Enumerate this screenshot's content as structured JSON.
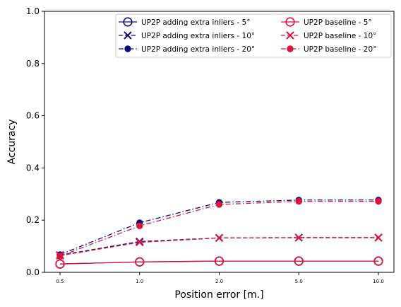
{
  "chart_data": {
    "type": "line",
    "title": "",
    "xlabel": "Position error [m.]",
    "ylabel": "Accuracy",
    "x": [
      0.5,
      1.0,
      2.0,
      5.0,
      10.0
    ],
    "x_tick_labels": [
      "0.5",
      "1.0",
      "2.0",
      "5.0",
      "10.0"
    ],
    "xscale": "categorical-equal-spacing",
    "ylim": [
      0,
      1
    ],
    "y_ticks": [
      "0.0",
      "0.2",
      "0.4",
      "0.6",
      "0.8",
      "1.0"
    ],
    "grid": false,
    "legend_position": "top-right",
    "legend_columns": 2,
    "series": [
      {
        "name": "UP2P adding extra inliers - 5°",
        "values": [
          0.032,
          0.04,
          0.043,
          0.043,
          0.043
        ],
        "color": "#0d0d80",
        "linestyle": "solid",
        "marker": "open-circle"
      },
      {
        "name": "UP2P adding extra inliers - 10°",
        "values": [
          0.066,
          0.118,
          0.132,
          0.133,
          0.133
        ],
        "color": "#0d0d80",
        "linestyle": "dashed",
        "marker": "x"
      },
      {
        "name": "UP2P adding extra inliers - 20°",
        "values": [
          0.068,
          0.19,
          0.268,
          0.277,
          0.277
        ],
        "color": "#0d0d80",
        "linestyle": "dashdot",
        "marker": "filled-circle"
      },
      {
        "name": "UP2P baseline - 5°",
        "values": [
          0.032,
          0.04,
          0.043,
          0.043,
          0.043
        ],
        "color": "#dc143c",
        "linestyle": "solid",
        "marker": "open-circle"
      },
      {
        "name": "UP2P baseline - 10°",
        "values": [
          0.064,
          0.115,
          0.132,
          0.133,
          0.133
        ],
        "color": "#dc143c",
        "linestyle": "dashed",
        "marker": "x"
      },
      {
        "name": "UP2P baseline - 20°",
        "values": [
          0.062,
          0.178,
          0.26,
          0.272,
          0.272
        ],
        "color": "#dc143c",
        "linestyle": "dashdot",
        "marker": "filled-circle"
      }
    ]
  }
}
